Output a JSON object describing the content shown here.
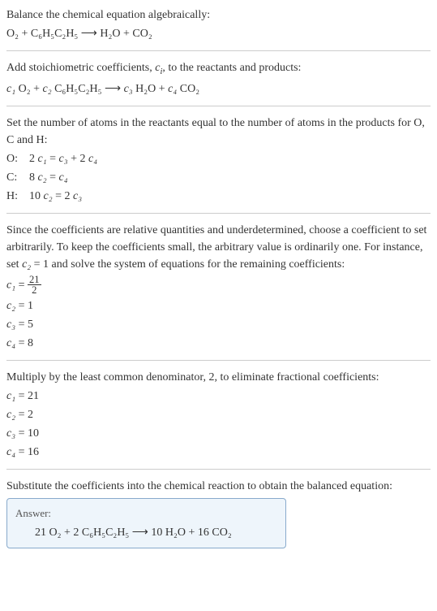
{
  "s1": {
    "line1": "Balance the chemical equation algebraically:",
    "eq": "O₂ + C₆H₅C₂H₅  ⟶  H₂O + CO₂"
  },
  "s2": {
    "line1_a": "Add stoichiometric coefficients, ",
    "line1_ci": "c",
    "line1_i": "i",
    "line1_b": ", to the reactants and products:",
    "eq_c1": "c₁",
    "eq_r1": " O₂ + ",
    "eq_c2": "c₂",
    "eq_r2": " C₆H₅C₂H₅  ⟶  ",
    "eq_c3": "c₃",
    "eq_r3": " H₂O + ",
    "eq_c4": "c₄",
    "eq_r4": " CO₂"
  },
  "s3": {
    "line1": "Set the number of atoms in the reactants equal to the number of atoms in the products for O, C and H:",
    "rows": [
      {
        "label": "O:",
        "lhs_c": "2 ",
        "lhs_v": "c₁",
        "rhs_a": " = ",
        "rhs_v1": "c₃",
        "rhs_m": " + 2 ",
        "rhs_v2": "c₄"
      },
      {
        "label": "C:",
        "lhs_c": "8 ",
        "lhs_v": "c₂",
        "rhs_a": " = ",
        "rhs_v1": "c₄",
        "rhs_m": "",
        "rhs_v2": ""
      },
      {
        "label": "H:",
        "lhs_c": "10 ",
        "lhs_v": "c₂",
        "rhs_a": " = 2 ",
        "rhs_v1": "c₃",
        "rhs_m": "",
        "rhs_v2": ""
      }
    ]
  },
  "s4": {
    "line1_a": "Since the coefficients are relative quantities and underdetermined, choose a coefficient to set arbitrarily. To keep the coefficients small, the arbitrary value is ordinarily one. For instance, set ",
    "line1_v": "c₂",
    "line1_b": " = 1 and solve the system of equations for the remaining coefficients:",
    "c1v": "c₁",
    "c1eq": " = ",
    "c1num": "21",
    "c1den": "2",
    "c2v": "c₂",
    "c2eq": " = 1",
    "c3v": "c₃",
    "c3eq": " = 5",
    "c4v": "c₄",
    "c4eq": " = 8"
  },
  "s5": {
    "line1": "Multiply by the least common denominator, 2, to eliminate fractional coefficients:",
    "c1v": "c₁",
    "c1eq": " = 21",
    "c2v": "c₂",
    "c2eq": " = 2",
    "c3v": "c₃",
    "c3eq": " = 10",
    "c4v": "c₄",
    "c4eq": " = 16"
  },
  "s6": {
    "line1": "Substitute the coefficients into the chemical reaction to obtain the balanced equation:",
    "answer_label": "Answer:",
    "answer_eq": "21 O₂ + 2 C₆H₅C₂H₅  ⟶  10 H₂O + 16 CO₂"
  }
}
